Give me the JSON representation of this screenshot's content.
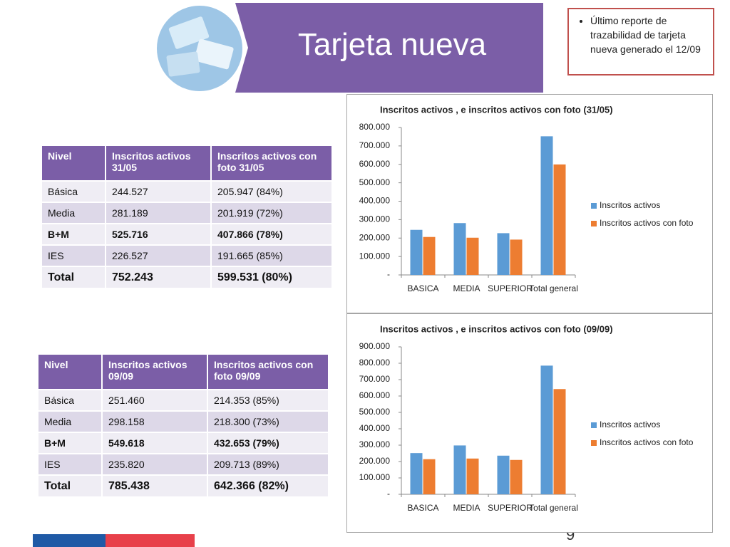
{
  "header": {
    "title": "Tarjeta nueva"
  },
  "note": "Último reporte de trazabilidad de tarjeta nueva generado el 12/09",
  "page_number": "9",
  "tables": [
    {
      "columns": [
        "Nivel",
        "Inscritos activos 31/05",
        "Inscritos activos con foto 31/05"
      ],
      "rows": [
        [
          "Básica",
          "244.527",
          "205.947 (84%)"
        ],
        [
          "Media",
          "281.189",
          "201.919 (72%)"
        ],
        [
          "B+M",
          "525.716",
          "407.866 (78%)"
        ],
        [
          "IES",
          "226.527",
          "191.665 (85%)"
        ],
        [
          "Total",
          "752.243",
          "599.531 (80%)"
        ]
      ]
    },
    {
      "columns": [
        "Nivel",
        "Inscritos activos 09/09",
        "Inscritos activos con foto 09/09"
      ],
      "rows": [
        [
          "Básica",
          "251.460",
          "214.353 (85%)"
        ],
        [
          "Media",
          "298.158",
          "218.300 (73%)"
        ],
        [
          "B+M",
          "549.618",
          "432.653 (79%)"
        ],
        [
          "IES",
          "235.820",
          "209.713 (89%)"
        ],
        [
          "Total",
          "785.438",
          "642.366 (82%)"
        ]
      ]
    }
  ],
  "chart_data": [
    {
      "type": "bar",
      "title": "Inscritos activos , e inscritos activos con foto (31/05)",
      "categories": [
        "BASICA",
        "MEDIA",
        "SUPERIOR",
        "Total general"
      ],
      "series": [
        {
          "name": "Inscritos activos",
          "color": "#5b9bd5",
          "values": [
            244527,
            281189,
            226527,
            752243
          ]
        },
        {
          "name": "Inscritos activos con foto",
          "color": "#ed7d31",
          "values": [
            205947,
            201919,
            191665,
            599531
          ]
        }
      ],
      "ylim": [
        0,
        800000
      ],
      "yticks": [
        {
          "value": 0,
          "label": "-"
        },
        {
          "value": 100000,
          "label": "100.000"
        },
        {
          "value": 200000,
          "label": "200.000"
        },
        {
          "value": 300000,
          "label": "300.000"
        },
        {
          "value": 400000,
          "label": "400.000"
        },
        {
          "value": 500000,
          "label": "500.000"
        },
        {
          "value": 600000,
          "label": "600.000"
        },
        {
          "value": 700000,
          "label": "700.000"
        },
        {
          "value": 800000,
          "label": "800.000"
        }
      ],
      "legend": "right"
    },
    {
      "type": "bar",
      "title": "Inscritos activos , e inscritos activos con foto (09/09)",
      "categories": [
        "BASICA",
        "MEDIA",
        "SUPERIOR",
        "Total general"
      ],
      "series": [
        {
          "name": "Inscritos activos",
          "color": "#5b9bd5",
          "values": [
            251460,
            298158,
            235820,
            785438
          ]
        },
        {
          "name": "Inscritos activos con foto",
          "color": "#ed7d31",
          "values": [
            214353,
            218300,
            209713,
            642366
          ]
        }
      ],
      "ylim": [
        0,
        900000
      ],
      "yticks": [
        {
          "value": 0,
          "label": "-"
        },
        {
          "value": 100000,
          "label": "100.000"
        },
        {
          "value": 200000,
          "label": "200.000"
        },
        {
          "value": 300000,
          "label": "300.000"
        },
        {
          "value": 400000,
          "label": "400.000"
        },
        {
          "value": 500000,
          "label": "500.000"
        },
        {
          "value": 600000,
          "label": "600.000"
        },
        {
          "value": 700000,
          "label": "700.000"
        },
        {
          "value": 800000,
          "label": "800.000"
        },
        {
          "value": 900000,
          "label": "900.000"
        }
      ],
      "legend": "right"
    }
  ]
}
